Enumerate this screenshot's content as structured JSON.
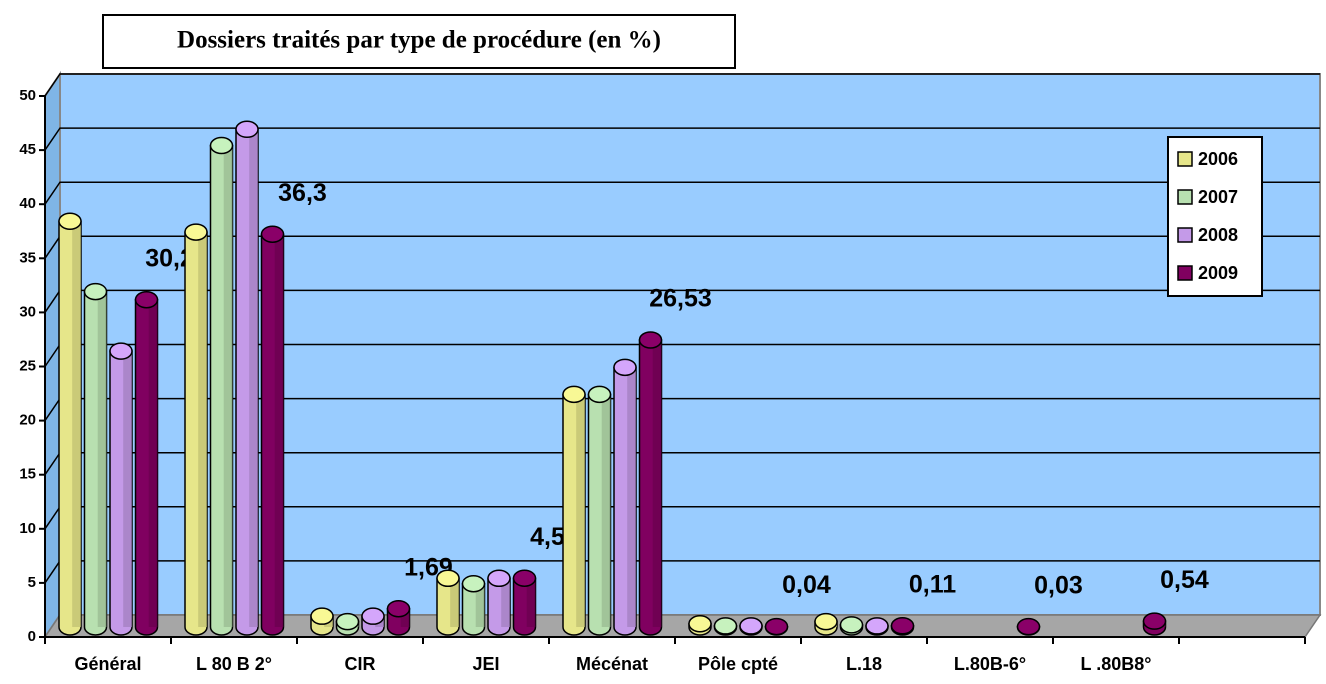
{
  "chart_data": {
    "type": "bar3d",
    "title": "Dossiers traités par type de procédure (en %)",
    "categories": [
      "Général",
      "L 80 B 2°",
      "CIR",
      "JEI",
      "Mécénat",
      "Pôle cpté",
      "L.18",
      "L.80B-6°",
      "L .80B8°"
    ],
    "series": [
      {
        "name": "2006",
        "color": "#e6e68a",
        "values": [
          37.5,
          36.5,
          1,
          4.5,
          21.5,
          0.3,
          0.5,
          null,
          null
        ]
      },
      {
        "name": "2007",
        "color": "#b8e0b0",
        "values": [
          31,
          44.5,
          0.5,
          4,
          21.5,
          0.1,
          0.2,
          null,
          null
        ]
      },
      {
        "name": "2008",
        "color": "#c49ae8",
        "values": [
          25.5,
          46,
          1,
          4.5,
          24,
          0.1,
          0.1,
          null,
          null
        ]
      },
      {
        "name": "2009",
        "color": "#800060",
        "values": [
          30.25,
          36.3,
          1.69,
          4.51,
          26.53,
          0.04,
          0.11,
          0.03,
          0.54
        ],
        "value_labels": [
          "30,25",
          "36,3",
          "1,69",
          "4,51",
          "26,53",
          "0,04",
          "0,11",
          "0,03",
          "0,54"
        ]
      }
    ],
    "ylim": [
      0,
      50
    ],
    "yticks": [
      0,
      5,
      10,
      15,
      20,
      25,
      30,
      35,
      40,
      45,
      50
    ],
    "grid": true,
    "legend": "right"
  }
}
